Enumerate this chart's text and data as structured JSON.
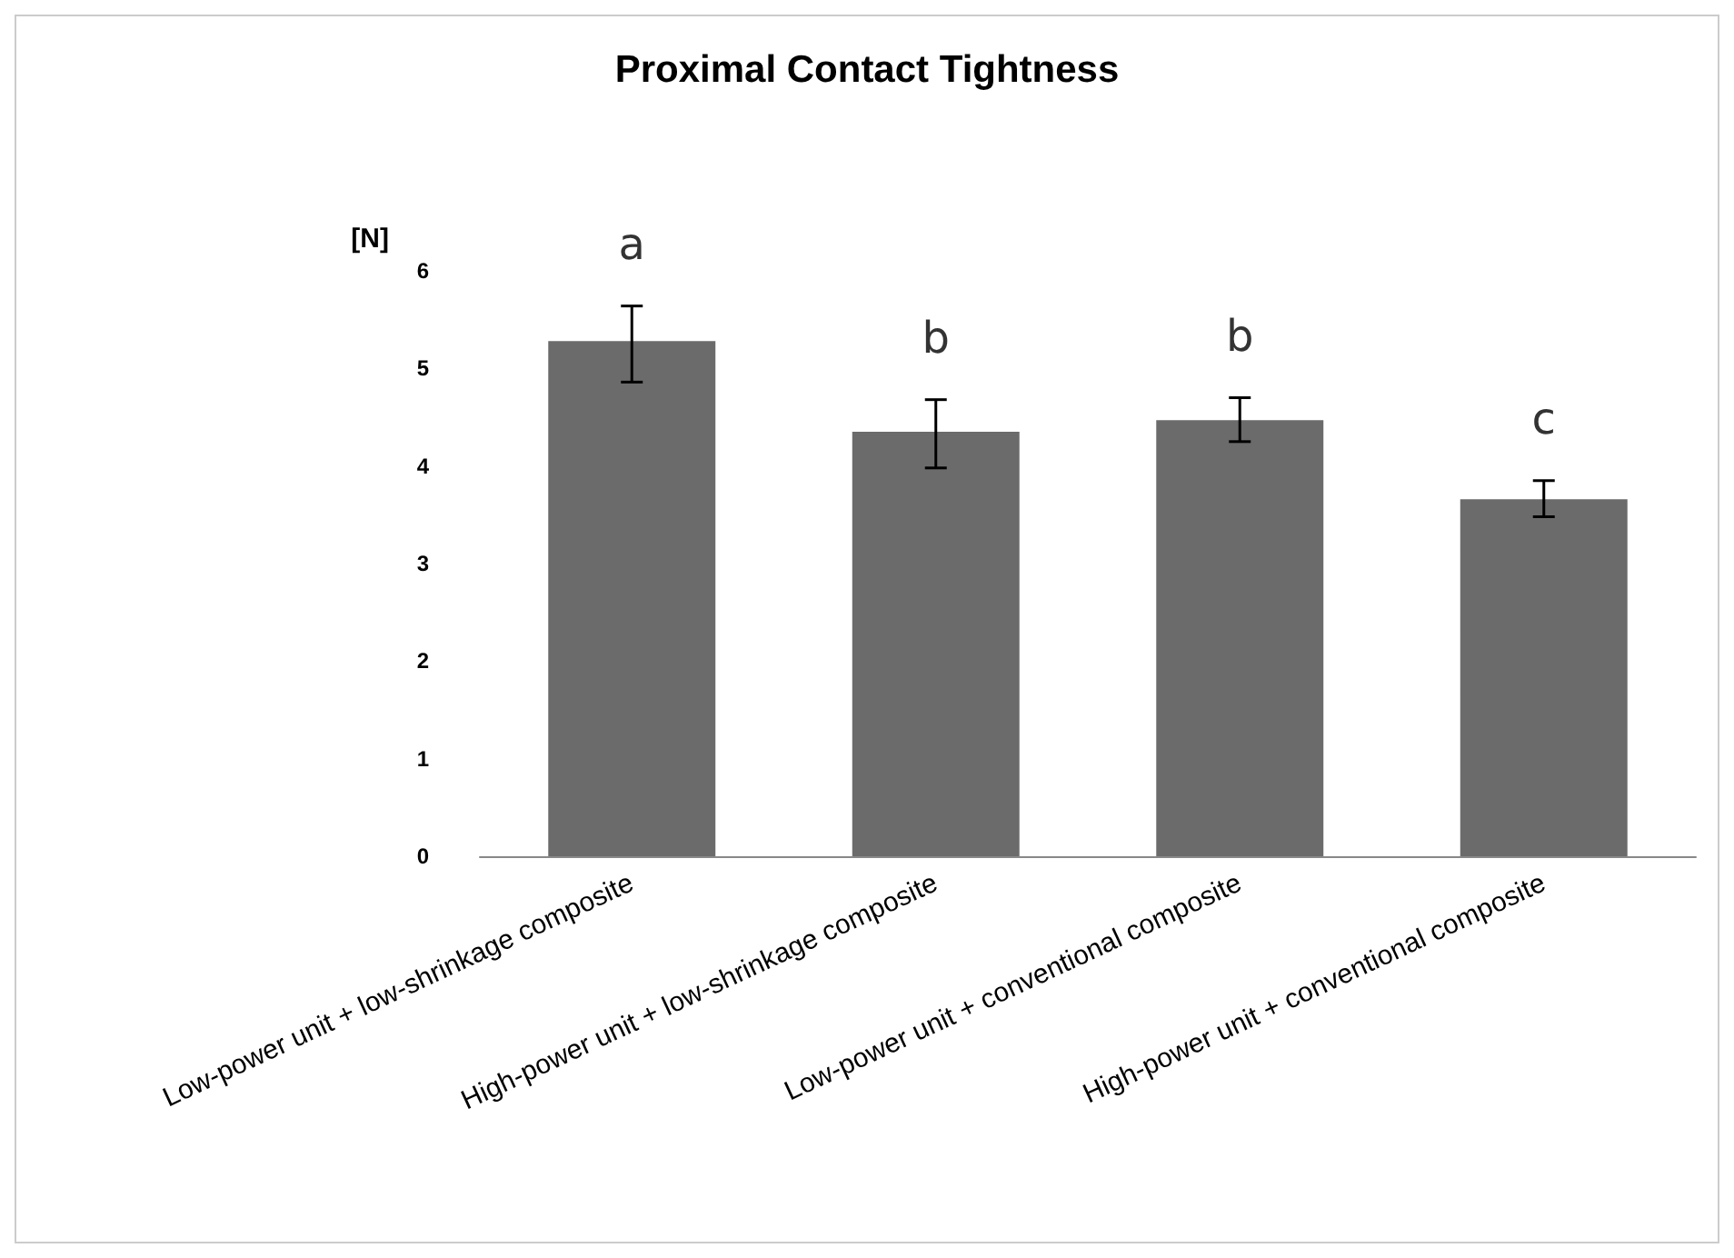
{
  "chart_data": {
    "type": "bar",
    "title": "Proximal Contact Tightness",
    "ylabel": "[N]",
    "categories": [
      "Low-power unit + low-shrinkage composite",
      "High-power unit + low-shrinkage composite",
      "Low-power unit + conventional composite",
      "High-power unit + conventional composite"
    ],
    "values": [
      5.28,
      4.35,
      4.47,
      3.66
    ],
    "errors": [
      [
        4.86,
        5.64
      ],
      [
        3.98,
        4.68
      ],
      [
        4.25,
        4.7
      ],
      [
        3.48,
        3.85
      ]
    ],
    "color": "#6b6b6b",
    "ylim": [
      0,
      6
    ],
    "yticks": [
      0,
      1,
      2,
      3,
      4,
      5,
      6
    ],
    "grid": false,
    "annotations": [
      "a",
      "b",
      "b",
      "c"
    ]
  }
}
